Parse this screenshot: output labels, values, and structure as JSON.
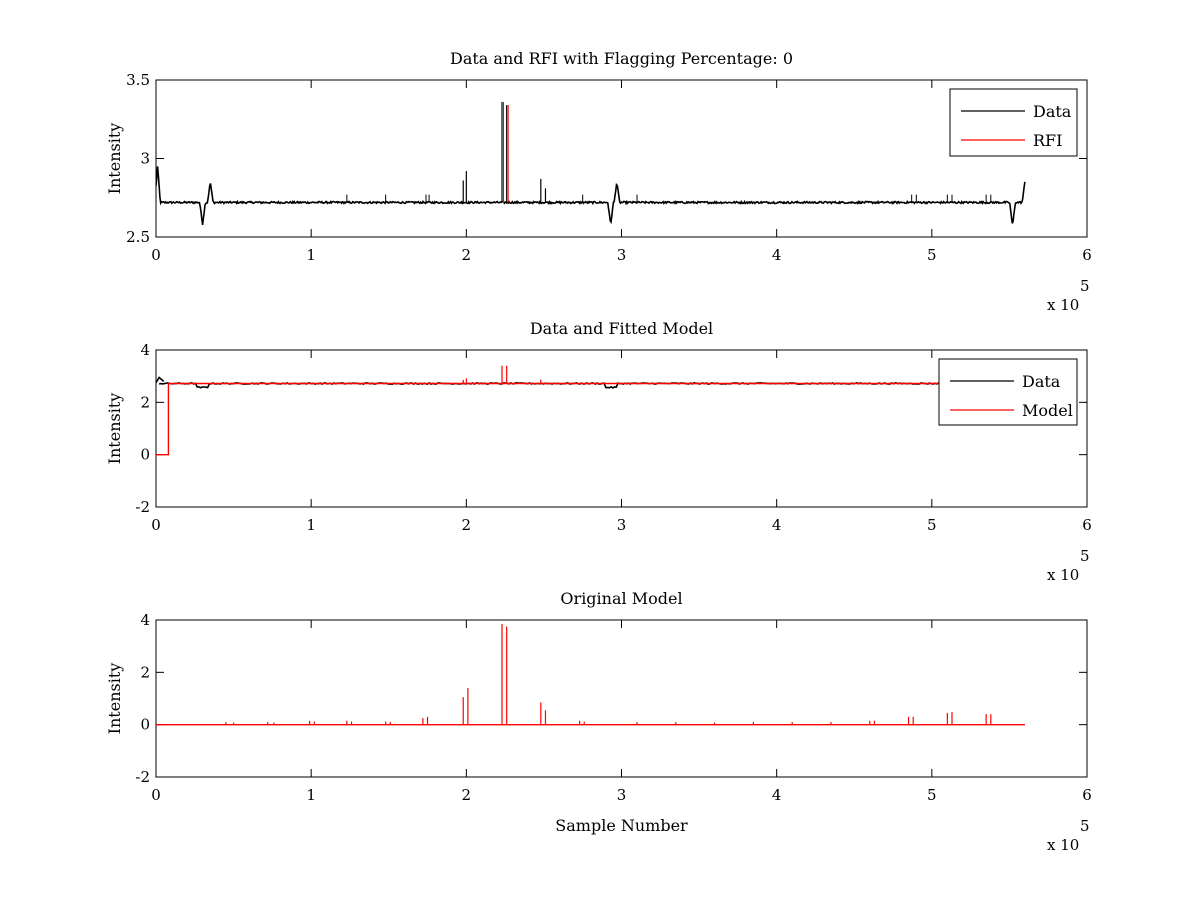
{
  "figure": {
    "background": "#ffffff",
    "colors": {
      "data": "#000000",
      "rfi": "#ff0000",
      "model": "#ff0000"
    }
  },
  "chart_data": [
    {
      "type": "line",
      "title": "Data and RFI with Flagging Percentage: 0",
      "xlabel": "",
      "ylabel": "Intensity",
      "xlim": [
        0,
        6
      ],
      "ylim": [
        2.5,
        3.5
      ],
      "x_ticks": [
        "0",
        "1",
        "2",
        "3",
        "4",
        "5",
        "6"
      ],
      "y_ticks": [
        "2.5",
        "3",
        "3.5"
      ],
      "x_exponent": {
        "base": "x 10",
        "power": "5"
      },
      "legend": {
        "placement": "top-right",
        "entries": [
          "Data",
          "RFI"
        ]
      },
      "series": [
        {
          "name": "Data",
          "color": "#000000",
          "baseline": 2.72,
          "x_end": 5.6,
          "features": [
            {
              "x": 0.01,
              "y": 2.95
            },
            {
              "x": 0.3,
              "y": 2.58
            },
            {
              "x": 0.35,
              "y": 2.85
            },
            {
              "x": 2.93,
              "y": 2.58
            },
            {
              "x": 2.97,
              "y": 2.85
            },
            {
              "x": 5.52,
              "y": 2.57
            },
            {
              "x": 5.6,
              "y": 2.85
            }
          ],
          "spikes": [
            {
              "x": 1.98,
              "y": 2.86
            },
            {
              "x": 2.0,
              "y": 2.92
            },
            {
              "x": 2.23,
              "y": 3.36
            },
            {
              "x": 2.26,
              "y": 3.34
            },
            {
              "x": 2.48,
              "y": 2.87
            },
            {
              "x": 2.51,
              "y": 2.81
            }
          ]
        },
        {
          "name": "RFI",
          "color": "#ff0000"
        }
      ]
    },
    {
      "type": "line",
      "title": "Data and Fitted Model",
      "xlabel": "",
      "ylabel": "Intensity",
      "xlim": [
        0,
        6
      ],
      "ylim": [
        -2,
        4
      ],
      "x_ticks": [
        "0",
        "1",
        "2",
        "3",
        "4",
        "5",
        "6"
      ],
      "y_ticks": [
        "-2",
        "0",
        "2",
        "4"
      ],
      "x_exponent": {
        "base": "x 10",
        "power": "5"
      },
      "legend": {
        "placement": "top-right",
        "entries": [
          "Data",
          "Model"
        ]
      },
      "series": [
        {
          "name": "Data",
          "color": "#000000",
          "baseline": 2.72
        },
        {
          "name": "Model",
          "color": "#ff0000",
          "step": [
            {
              "x": 0,
              "y": 0
            },
            {
              "x": 0.08,
              "y": 0
            },
            {
              "x": 0.08,
              "y": 2.72
            }
          ],
          "baseline": 2.72,
          "spikes": [
            {
              "x": 1.98,
              "y": 2.86
            },
            {
              "x": 2.0,
              "y": 2.92
            },
            {
              "x": 2.23,
              "y": 3.4
            },
            {
              "x": 2.26,
              "y": 3.4
            },
            {
              "x": 2.48,
              "y": 2.87
            }
          ]
        }
      ]
    },
    {
      "type": "line",
      "title": "Original Model",
      "xlabel": "Sample Number",
      "ylabel": "Intensity",
      "xlim": [
        0,
        6
      ],
      "ylim": [
        -2,
        4
      ],
      "x_ticks": [
        "0",
        "1",
        "2",
        "3",
        "4",
        "5",
        "6"
      ],
      "y_ticks": [
        "-2",
        "0",
        "2",
        "4"
      ],
      "x_exponent": {
        "base": "x 10",
        "power": "5"
      },
      "series": [
        {
          "name": "",
          "color": "#ff0000",
          "baseline": 0,
          "x_end": 5.6,
          "spikes": [
            {
              "x": 0.45,
              "y": 0.1
            },
            {
              "x": 0.5,
              "y": 0.08
            },
            {
              "x": 0.72,
              "y": 0.1
            },
            {
              "x": 0.76,
              "y": 0.08
            },
            {
              "x": 0.99,
              "y": 0.15
            },
            {
              "x": 1.02,
              "y": 0.12
            },
            {
              "x": 1.23,
              "y": 0.15
            },
            {
              "x": 1.26,
              "y": 0.12
            },
            {
              "x": 1.48,
              "y": 0.12
            },
            {
              "x": 1.51,
              "y": 0.1
            },
            {
              "x": 1.72,
              "y": 0.25
            },
            {
              "x": 1.75,
              "y": 0.3
            },
            {
              "x": 1.98,
              "y": 1.05
            },
            {
              "x": 2.01,
              "y": 1.4
            },
            {
              "x": 2.23,
              "y": 3.85
            },
            {
              "x": 2.26,
              "y": 3.75
            },
            {
              "x": 2.48,
              "y": 0.85
            },
            {
              "x": 2.51,
              "y": 0.55
            },
            {
              "x": 2.73,
              "y": 0.15
            },
            {
              "x": 2.76,
              "y": 0.12
            },
            {
              "x": 3.1,
              "y": 0.1
            },
            {
              "x": 3.35,
              "y": 0.1
            },
            {
              "x": 3.6,
              "y": 0.08
            },
            {
              "x": 3.85,
              "y": 0.1
            },
            {
              "x": 4.1,
              "y": 0.1
            },
            {
              "x": 4.35,
              "y": 0.1
            },
            {
              "x": 4.6,
              "y": 0.15
            },
            {
              "x": 4.63,
              "y": 0.15
            },
            {
              "x": 4.85,
              "y": 0.3
            },
            {
              "x": 4.88,
              "y": 0.3
            },
            {
              "x": 5.1,
              "y": 0.45
            },
            {
              "x": 5.13,
              "y": 0.48
            },
            {
              "x": 5.35,
              "y": 0.4
            },
            {
              "x": 5.38,
              "y": 0.4
            }
          ]
        }
      ]
    }
  ]
}
